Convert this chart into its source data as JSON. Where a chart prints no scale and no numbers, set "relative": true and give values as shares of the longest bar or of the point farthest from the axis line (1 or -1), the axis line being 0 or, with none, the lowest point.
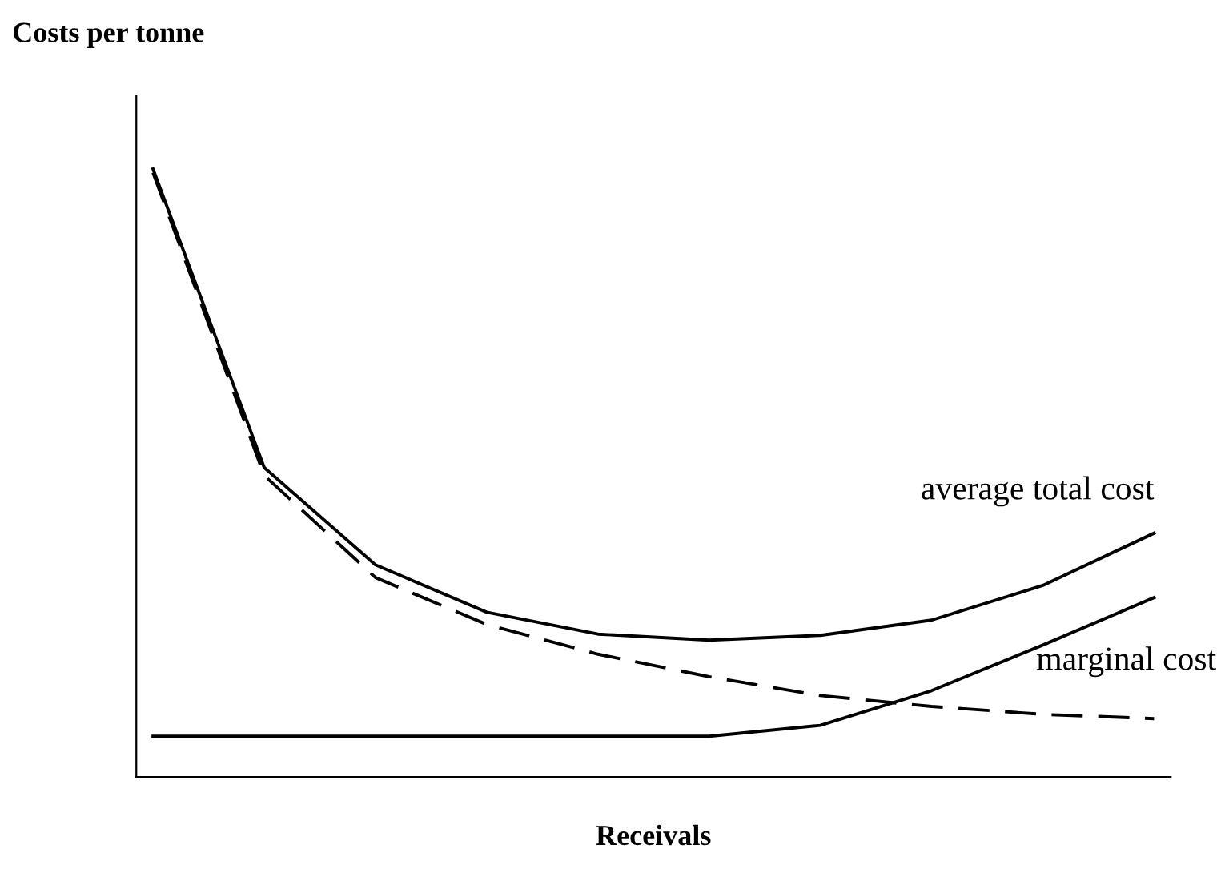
{
  "chart_data": {
    "type": "line",
    "relative": true,
    "ylabel": "Costs per tonne",
    "xlabel": "Receivals",
    "categories": [
      null,
      null,
      null,
      null,
      null,
      null,
      null,
      null,
      null,
      null
    ],
    "series": [
      {
        "name": "average total cost",
        "color": "#000000",
        "line_style": "solid",
        "values": [
          1.0,
          0.509,
          0.349,
          0.271,
          0.235,
          0.225,
          0.233,
          0.258,
          0.315,
          0.401
        ]
      },
      {
        "color": "#000000",
        "line_style": "dashed",
        "values": [
          0.994,
          0.496,
          0.328,
          0.251,
          0.202,
          0.165,
          0.134,
          0.116,
          0.103,
          0.096
        ]
      },
      {
        "name": "marginal cost",
        "color": "#000000",
        "line_style": "solid",
        "values": [
          0.067,
          0.067,
          0.067,
          0.067,
          0.067,
          0.067,
          0.085,
          0.142,
          0.217,
          0.295
        ]
      }
    ],
    "grid": false,
    "legend": false,
    "marker": "none"
  }
}
